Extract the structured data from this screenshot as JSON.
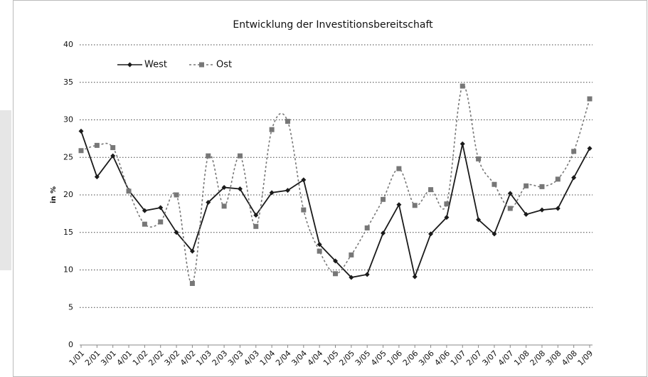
{
  "chart_data": {
    "type": "line",
    "title": "Entwicklung der Investitionsbereitschaft",
    "y_label": "in %",
    "categories": [
      "1/01",
      "2/01",
      "3/01",
      "4/01",
      "1/02",
      "2/02",
      "3/02",
      "4/02",
      "1/03",
      "2/03",
      "3/03",
      "4/03",
      "1/04",
      "2/04",
      "3/04",
      "4/04",
      "1/05",
      "2/05",
      "3/05",
      "4/05",
      "1/06",
      "2/06",
      "3/06",
      "4/06",
      "1/07",
      "2/07",
      "3/07",
      "4/07",
      "1/08",
      "2/08",
      "3/08",
      "4/08",
      "1/09"
    ],
    "series": [
      {
        "name": "West",
        "color": "#1a1a1a",
        "dashed": false,
        "marker": "diamond",
        "values": [
          28.5,
          22.4,
          25.2,
          20.6,
          17.9,
          18.3,
          15.0,
          12.5,
          19.0,
          21.0,
          20.8,
          17.3,
          20.3,
          20.6,
          22.0,
          13.4,
          11.2,
          9.0,
          9.4,
          14.9,
          18.7,
          9.1,
          14.8,
          17.0,
          26.8,
          16.7,
          14.8,
          20.2,
          17.4,
          18.0,
          18.2,
          22.3,
          26.2
        ]
      },
      {
        "name": "Ost",
        "color": "#777777",
        "dashed": true,
        "marker": "square",
        "values": [
          25.9,
          26.6,
          26.3,
          20.5,
          16.1,
          16.4,
          20.0,
          8.2,
          25.2,
          18.5,
          25.2,
          15.8,
          28.7,
          29.8,
          18.0,
          12.5,
          9.5,
          12.0,
          15.6,
          19.4,
          23.5,
          18.6,
          20.7,
          18.8,
          34.5,
          24.8,
          21.4,
          18.2,
          21.2,
          21.1,
          22.1,
          25.8,
          32.8
        ]
      }
    ],
    "ylim": [
      0,
      40
    ],
    "yticks": [
      0,
      5,
      10,
      15,
      20,
      25,
      30,
      35,
      40
    ],
    "grid": true,
    "legend": "top-left"
  }
}
